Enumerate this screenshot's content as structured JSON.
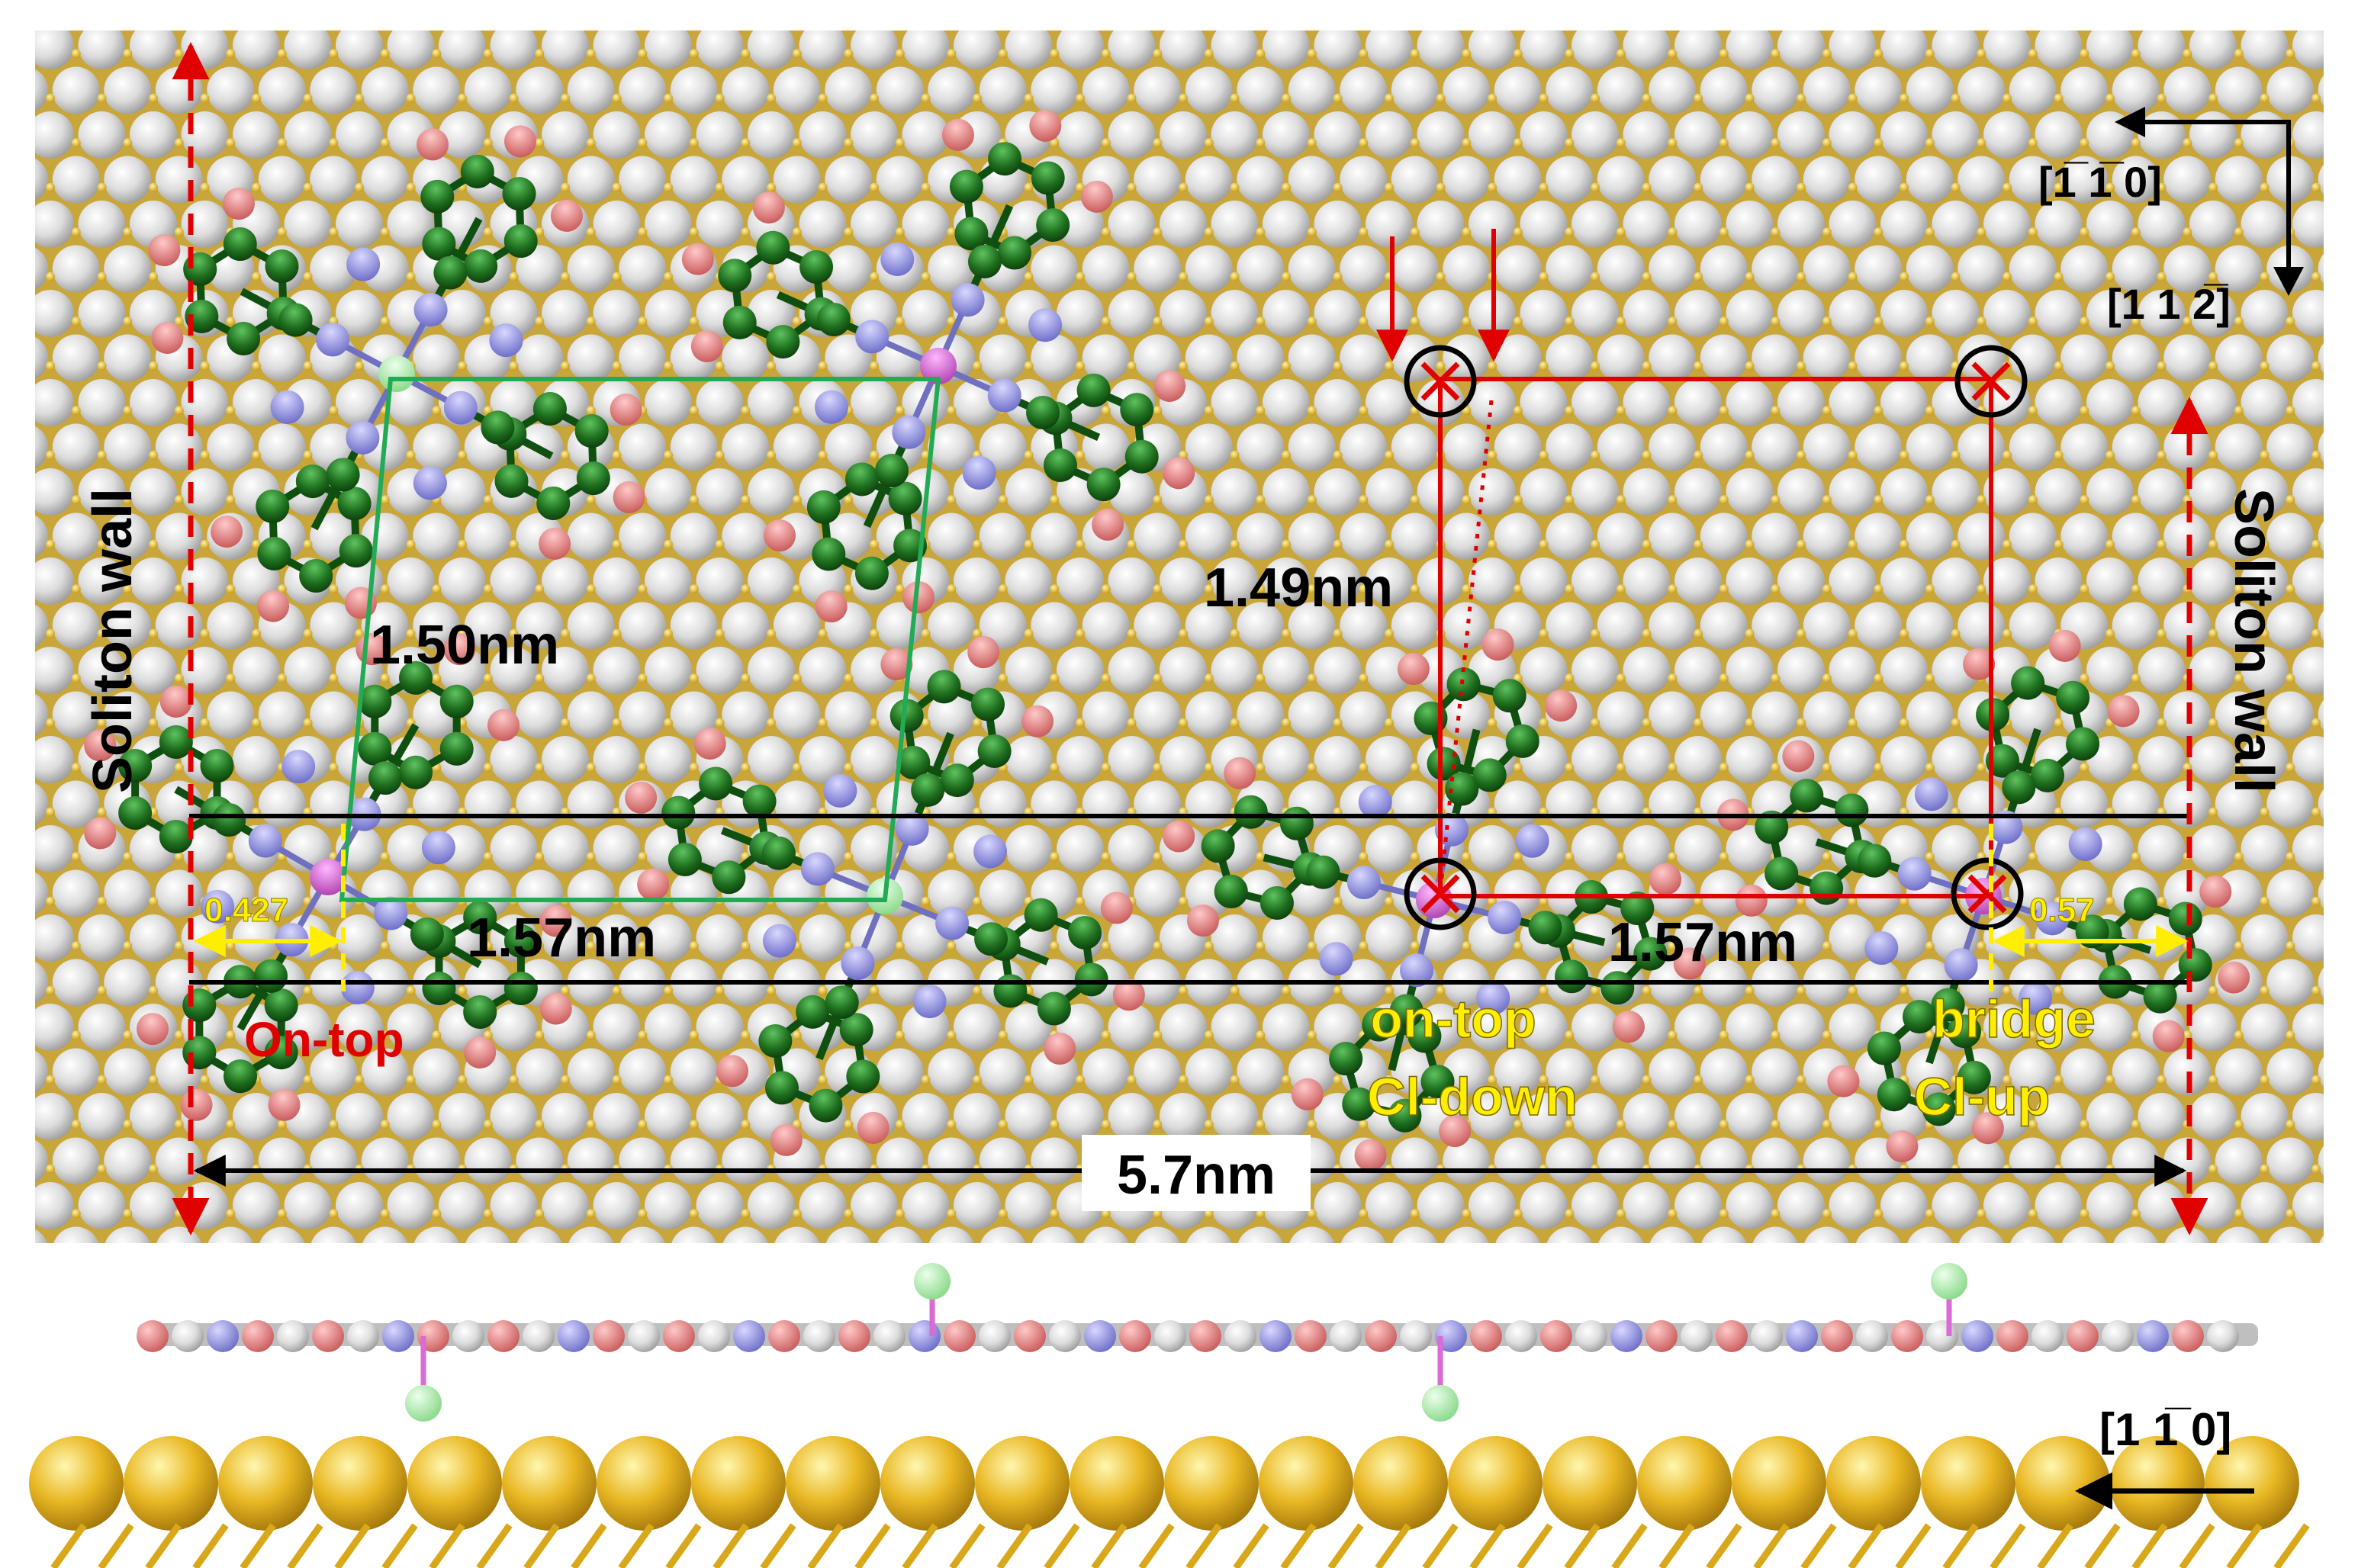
{
  "labels": {
    "soliton_wall_left": "Soliton wall",
    "soliton_wall_right": "Soliton wall",
    "dist_150": "1.50nm",
    "dist_149": "1.49nm",
    "dist_157_left": "1.57nm",
    "dist_157_right": "1.57nm",
    "dist_0427": "0.427",
    "dist_057": "0.57",
    "dist_57": "5.7nm",
    "on_top": "On-top",
    "on_top_cl_down_1": "on-top",
    "on_top_cl_down_2": "Cl-down",
    "bridge_cl_up_1": "bridge",
    "bridge_cl_up_2": "Cl-up",
    "dir_110_top": "[1̅ 1̅ 0]",
    "dir_112": "[1 1 2̅]",
    "dir_110_bottom": "[1 1̅ 0]"
  },
  "colors": {
    "substrate_atom": "#e2e2e2",
    "substrate_gap_atom": "#e3b52a",
    "carbon": "#1e6e1e",
    "nitrogen": "#8f8fe0",
    "hydrogen": "#e07a7a",
    "chlorine": "#a9f0a9",
    "metal": "#d96ad6",
    "green_cell": "#22aa55",
    "red_cell": "#e00000",
    "yellow_mark": "#ffee00",
    "gold_atom": "#e6b31d"
  }
}
